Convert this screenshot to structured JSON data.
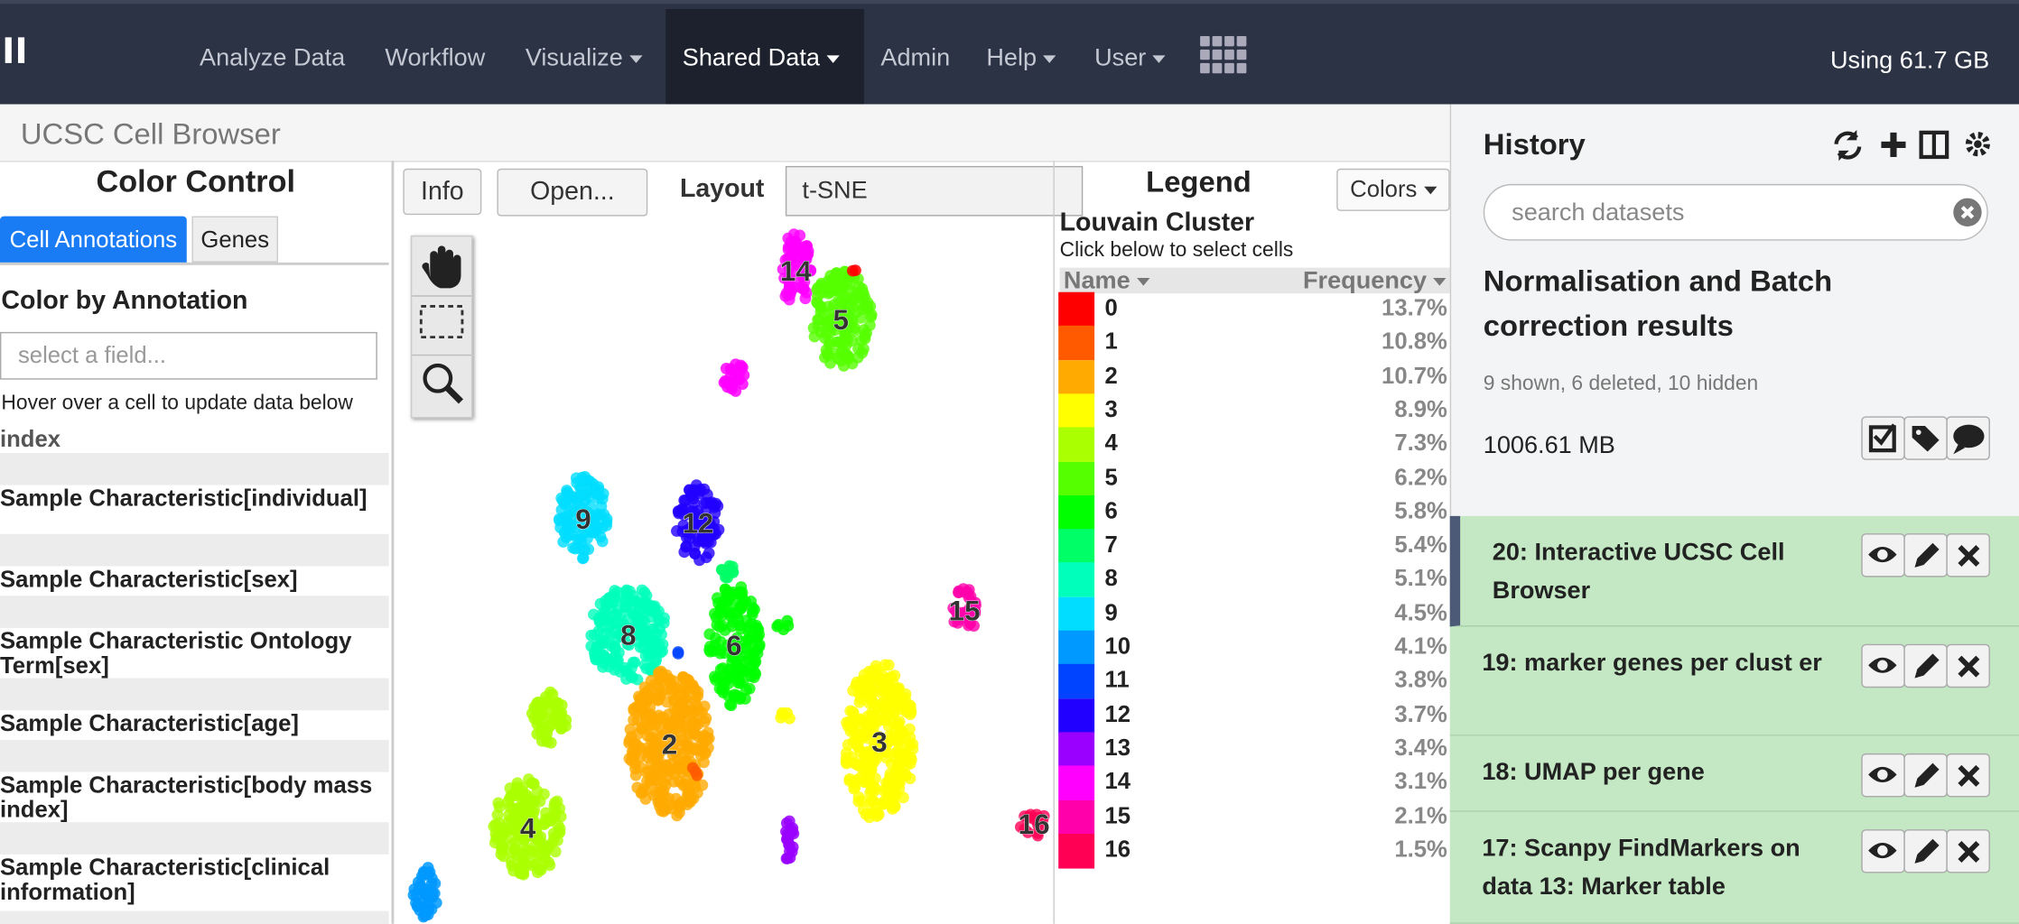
{
  "navbar": {
    "items": [
      "Analyze Data",
      "Workflow",
      "Visualize",
      "Shared Data",
      "Admin",
      "Help",
      "User"
    ],
    "usage": "Using 61.7 GB"
  },
  "app_title": "UCSC Cell Browser",
  "color_control": {
    "title": "Color Control",
    "tabs": [
      "Cell Annotations",
      "Genes"
    ],
    "heading": "Color by Annotation",
    "placeholder": "select a field...",
    "hint": "Hover over a cell to update data below",
    "fields": [
      "index",
      "Sample Characteristic[individual]",
      "Sample Characteristic[sex]",
      "Sample Characteristic Ontology Term[sex]",
      "Sample Characteristic[age]",
      "Sample Characteristic[body mass index]",
      "Sample Characteristic[clinical information]"
    ]
  },
  "toolbar": {
    "info": "Info",
    "open": "Open...",
    "layout_label": "Layout",
    "layout_value": "t-SNE"
  },
  "plot_labels": [
    "14",
    "5",
    "9",
    "12",
    "15",
    "8",
    "6",
    "2",
    "3",
    "4",
    "16"
  ],
  "legend": {
    "title": "Legend",
    "colors_button": "Colors",
    "subtitle": "Louvain Cluster",
    "hint": "Click below to select cells",
    "col_name": "Name",
    "col_freq": "Frequency",
    "rows": [
      {
        "name": "0",
        "frequency": "13.7%",
        "color": "#ff0000"
      },
      {
        "name": "1",
        "frequency": "10.8%",
        "color": "#ff5a00"
      },
      {
        "name": "2",
        "frequency": "10.7%",
        "color": "#ffaa00"
      },
      {
        "name": "3",
        "frequency": "8.9%",
        "color": "#ffff00"
      },
      {
        "name": "4",
        "frequency": "7.3%",
        "color": "#aaff00"
      },
      {
        "name": "5",
        "frequency": "6.2%",
        "color": "#55ff00"
      },
      {
        "name": "6",
        "frequency": "5.8%",
        "color": "#00ff00"
      },
      {
        "name": "7",
        "frequency": "5.4%",
        "color": "#00ff66"
      },
      {
        "name": "8",
        "frequency": "5.1%",
        "color": "#00ffbb"
      },
      {
        "name": "9",
        "frequency": "4.5%",
        "color": "#00ddff"
      },
      {
        "name": "10",
        "frequency": "4.1%",
        "color": "#0099ff"
      },
      {
        "name": "11",
        "frequency": "3.8%",
        "color": "#0044ff"
      },
      {
        "name": "12",
        "frequency": "3.7%",
        "color": "#2200ff"
      },
      {
        "name": "13",
        "frequency": "3.4%",
        "color": "#9900ff"
      },
      {
        "name": "14",
        "frequency": "3.1%",
        "color": "#ff00ff"
      },
      {
        "name": "15",
        "frequency": "2.1%",
        "color": "#ff00aa"
      },
      {
        "name": "16",
        "frequency": "1.5%",
        "color": "#ff0055"
      }
    ]
  },
  "history": {
    "title": "History",
    "search_placeholder": "search datasets",
    "name": "Normalisation and Batch correction results",
    "counts": "9 shown, 6 deleted, 10 hidden",
    "size": "1006.61 MB",
    "items": [
      "20: Interactive UCSC Cell Browser",
      "19: marker genes per clust er",
      "18: UMAP per gene",
      "17: Scanpy FindMarkers on data 13: Marker table"
    ]
  }
}
